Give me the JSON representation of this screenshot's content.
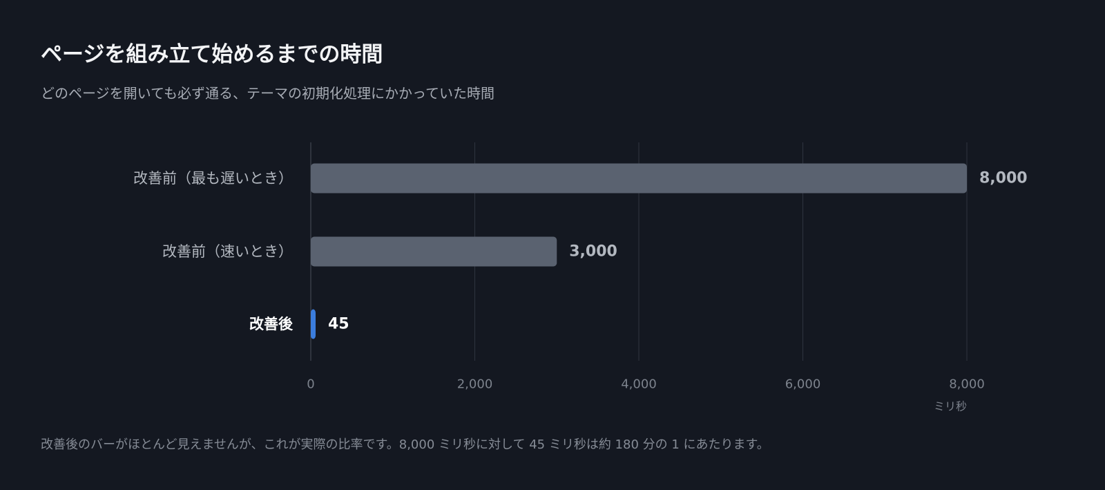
{
  "title": "ページを組み立て始めるまでの時間",
  "subtitle": "どのページを開いても必ず通る、テーマの初期化処理にかかっていた時間",
  "chart_data": {
    "type": "bar",
    "orientation": "horizontal",
    "categories": [
      "改善前（最も遅いとき）",
      "改善前（速いとき）",
      "改善後"
    ],
    "values": [
      8000,
      3000,
      45
    ],
    "value_labels": [
      "8,000",
      "3,000",
      "45"
    ],
    "highlight": [
      false,
      false,
      true
    ],
    "xlim": [
      0,
      8000
    ],
    "xticks": [
      0,
      2000,
      4000,
      6000,
      8000
    ],
    "xtick_labels": [
      "0",
      "2,000",
      "4,000",
      "6,000",
      "8,000"
    ],
    "xlabel": "ミリ秒",
    "grid": true,
    "colors": {
      "bar": "#5a6270",
      "bar_highlight": "#3b7ddd",
      "label": "#b3b8c0",
      "label_highlight": "#ffffff",
      "value": "#b3b8c0",
      "value_highlight": "#ffffff",
      "grid": "#2f3440",
      "axis": "#4a505c",
      "tick": "#7d838d"
    }
  },
  "footnote": "改善後のバーがほとんど見えませんが、これが実際の比率です。8,000 ミリ秒に対して 45 ミリ秒は約 180 分の 1 にあたります。"
}
